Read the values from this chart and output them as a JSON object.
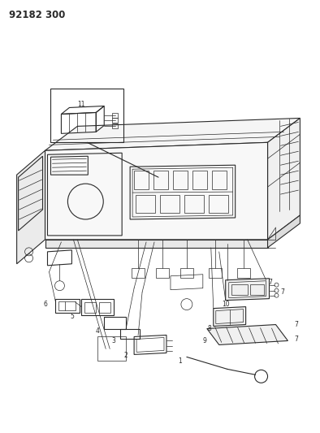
{
  "title": "92182 300",
  "bg": "#ffffff",
  "lc": "#2a2a2a",
  "fig_w": 3.94,
  "fig_h": 5.33,
  "dpi": 100,
  "label_fs": 5.5,
  "title_fs": 8.5,
  "lw_main": 0.8,
  "lw_thin": 0.5,
  "lw_thick": 1.0
}
